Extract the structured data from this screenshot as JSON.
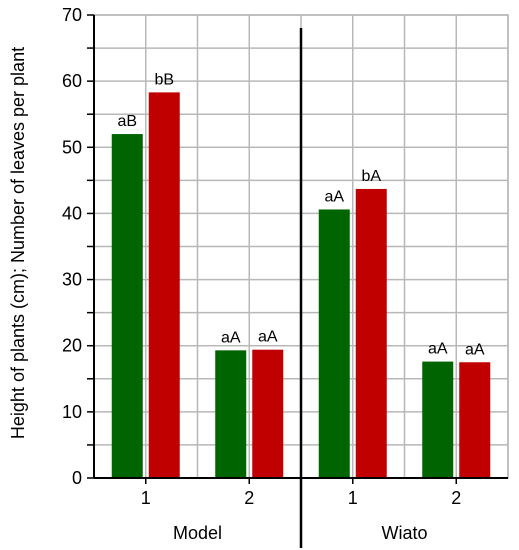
{
  "chart_data": {
    "type": "bar",
    "ylabel": "Height of plants (cm); Number of leaves per plant",
    "ylim": [
      0,
      70
    ],
    "yticks": [
      0,
      10,
      20,
      30,
      40,
      50,
      60,
      70
    ],
    "grid": true,
    "colors": [
      "#006400",
      "#c00000"
    ],
    "groups": [
      {
        "name": "Model",
        "categories": [
          {
            "label": "1",
            "values": [
              52.0,
              58.3
            ],
            "letters": [
              "aB",
              "bB"
            ]
          },
          {
            "label": "2",
            "values": [
              19.3,
              19.4
            ],
            "letters": [
              "aA",
              "aA"
            ]
          }
        ]
      },
      {
        "name": "Wiato",
        "categories": [
          {
            "label": "1",
            "values": [
              40.6,
              43.7
            ],
            "letters": [
              "aA",
              "bA"
            ]
          },
          {
            "label": "2",
            "values": [
              17.6,
              17.5
            ],
            "letters": [
              "aA",
              "aA"
            ]
          }
        ]
      }
    ]
  }
}
